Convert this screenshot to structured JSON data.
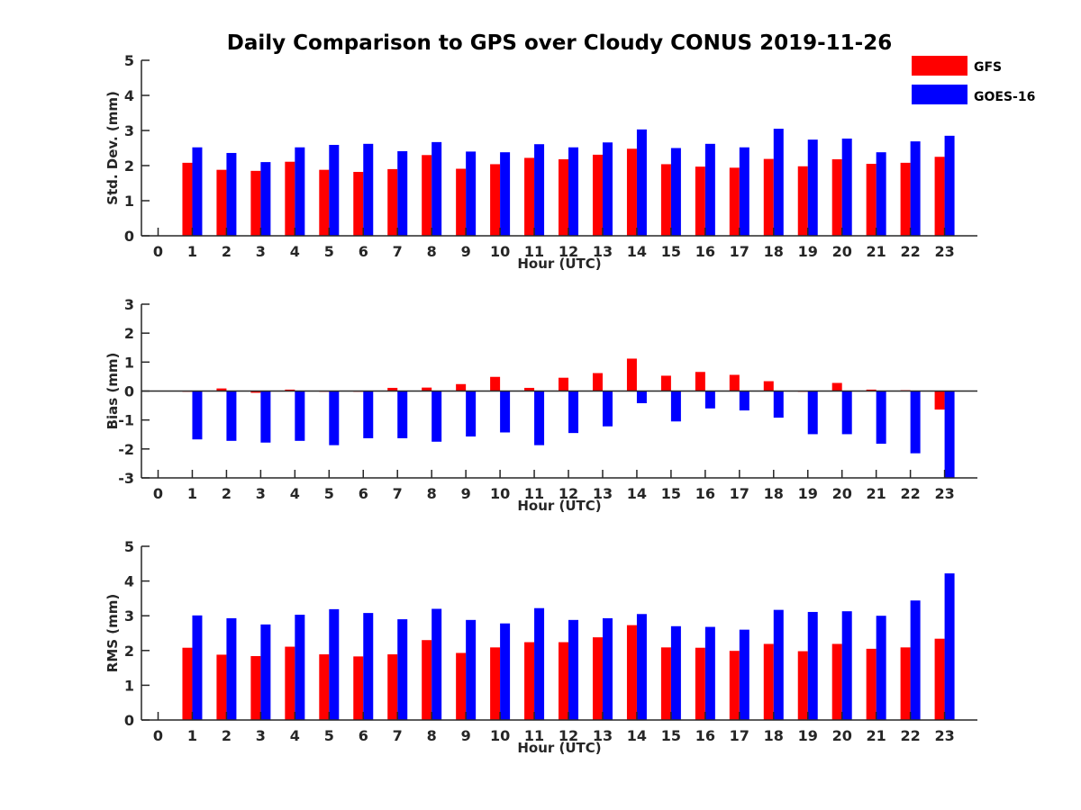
{
  "title": "Daily Comparison to GPS over Cloudy CONUS 2019-11-26",
  "legend": [
    {
      "label": "GFS",
      "color": "#ff0000"
    },
    {
      "label": "GOES-16",
      "color": "#0000ff"
    }
  ],
  "chart_data": [
    {
      "type": "bar",
      "name": "std-dev",
      "ylabel": "Std. Dev. (mm)",
      "xlabel": "Hour (UTC)",
      "ylim": [
        0,
        5
      ],
      "yticks": [
        0,
        1,
        2,
        3,
        4,
        5
      ],
      "categories": [
        "0",
        "1",
        "2",
        "3",
        "4",
        "5",
        "6",
        "7",
        "8",
        "9",
        "10",
        "11",
        "12",
        "13",
        "14",
        "15",
        "16",
        "17",
        "18",
        "19",
        "20",
        "21",
        "22",
        "23"
      ],
      "series": [
        {
          "name": "GFS",
          "color": "#ff0000",
          "values": [
            null,
            2.08,
            1.88,
            1.85,
            2.11,
            1.88,
            1.82,
            1.9,
            2.3,
            1.91,
            2.04,
            2.22,
            2.18,
            2.31,
            2.48,
            2.04,
            1.97,
            1.94,
            2.19,
            1.98,
            2.18,
            2.05,
            2.08,
            2.25
          ]
        },
        {
          "name": "GOES-16",
          "color": "#0000ff",
          "values": [
            null,
            2.52,
            2.36,
            2.1,
            2.52,
            2.59,
            2.62,
            2.41,
            2.67,
            2.4,
            2.38,
            2.61,
            2.52,
            2.66,
            3.03,
            2.5,
            2.62,
            2.52,
            3.05,
            2.74,
            2.77,
            2.38,
            2.69,
            2.85
          ]
        }
      ]
    },
    {
      "type": "bar",
      "name": "bias",
      "ylabel": "Bias (mm)",
      "xlabel": "Hour (UTC)",
      "ylim": [
        -3,
        3
      ],
      "yticks": [
        -3,
        -2,
        -1,
        0,
        1,
        2,
        3
      ],
      "categories": [
        "0",
        "1",
        "2",
        "3",
        "4",
        "5",
        "6",
        "7",
        "8",
        "9",
        "10",
        "11",
        "12",
        "13",
        "14",
        "15",
        "16",
        "17",
        "18",
        "19",
        "20",
        "21",
        "22",
        "23"
      ],
      "series": [
        {
          "name": "GFS",
          "color": "#ff0000",
          "values": [
            null,
            0.0,
            0.09,
            -0.06,
            0.05,
            0.0,
            -0.01,
            0.11,
            0.12,
            0.24,
            0.49,
            0.11,
            0.46,
            0.62,
            1.12,
            0.53,
            0.66,
            0.56,
            0.34,
            0.0,
            0.28,
            0.05,
            0.03,
            -0.64
          ]
        },
        {
          "name": "GOES-16",
          "color": "#0000ff",
          "values": [
            null,
            -1.67,
            -1.72,
            -1.78,
            -1.72,
            -1.87,
            -1.63,
            -1.63,
            -1.75,
            -1.57,
            -1.43,
            -1.87,
            -1.45,
            -1.22,
            -0.42,
            -1.05,
            -0.6,
            -0.67,
            -0.92,
            -1.49,
            -1.49,
            -1.82,
            -2.15,
            -3.0
          ]
        }
      ]
    },
    {
      "type": "bar",
      "name": "rms",
      "ylabel": "RMS (mm)",
      "xlabel": "Hour (UTC)",
      "ylim": [
        0,
        5
      ],
      "yticks": [
        0,
        1,
        2,
        3,
        4,
        5
      ],
      "categories": [
        "0",
        "1",
        "2",
        "3",
        "4",
        "5",
        "6",
        "7",
        "8",
        "9",
        "10",
        "11",
        "12",
        "13",
        "14",
        "15",
        "16",
        "17",
        "18",
        "19",
        "20",
        "21",
        "22",
        "23"
      ],
      "series": [
        {
          "name": "GFS",
          "color": "#ff0000",
          "values": [
            null,
            2.08,
            1.88,
            1.84,
            2.11,
            1.89,
            1.83,
            1.89,
            2.3,
            1.93,
            2.09,
            2.24,
            2.24,
            2.38,
            2.73,
            2.09,
            2.08,
            1.99,
            2.19,
            1.98,
            2.19,
            2.05,
            2.09,
            2.34
          ]
        },
        {
          "name": "GOES-16",
          "color": "#0000ff",
          "values": [
            null,
            3.01,
            2.93,
            2.75,
            3.03,
            3.19,
            3.08,
            2.9,
            3.2,
            2.88,
            2.78,
            3.22,
            2.88,
            2.93,
            3.05,
            2.7,
            2.68,
            2.6,
            3.17,
            3.11,
            3.13,
            3.0,
            3.44,
            4.22
          ]
        }
      ]
    }
  ]
}
